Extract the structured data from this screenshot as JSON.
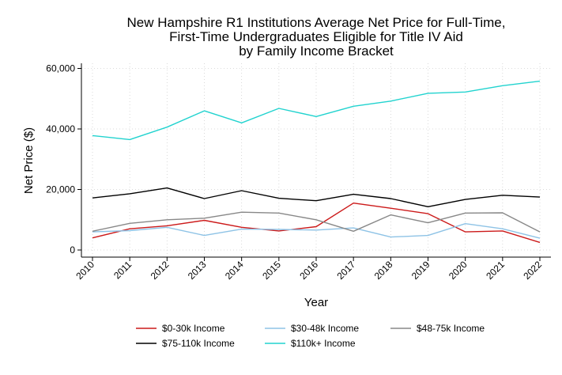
{
  "chart_data": {
    "type": "line",
    "title": [
      "New Hampshire R1 Institutions Average Net Price for Full-Time,",
      "First-Time Undergraduates Eligible for Title IV Aid",
      "by Family Income Bracket"
    ],
    "xlabel": "Year",
    "ylabel": "Net Price ($)",
    "x": [
      2010,
      2011,
      2012,
      2013,
      2014,
      2015,
      2016,
      2017,
      2018,
      2019,
      2020,
      2021,
      2022
    ],
    "ylim": [
      0,
      60000
    ],
    "yticks": [
      0,
      20000,
      40000,
      60000
    ],
    "ytick_labels": [
      "0",
      "20,000",
      "40,000",
      "60,000"
    ],
    "grid": true,
    "legend_position": "bottom",
    "series": [
      {
        "name": "$0-30k Income",
        "color": "#cc1a1a",
        "values": [
          4000,
          7000,
          8000,
          9800,
          7500,
          6300,
          7700,
          15500,
          13800,
          12000,
          6000,
          6300,
          2500
        ]
      },
      {
        "name": "$30-48k Income",
        "color": "#8ec3e6",
        "values": [
          6000,
          6400,
          7500,
          4800,
          6900,
          6800,
          6600,
          7300,
          4300,
          4800,
          8700,
          7000,
          3900
        ]
      },
      {
        "name": "$48-75k Income",
        "color": "#888888",
        "values": [
          6200,
          8800,
          10000,
          10500,
          12500,
          12200,
          10000,
          6200,
          11600,
          9000,
          12200,
          12300,
          6000
        ]
      },
      {
        "name": "$75-110k Income",
        "color": "#000000",
        "values": [
          17200,
          18600,
          20500,
          17000,
          19600,
          17100,
          16300,
          18400,
          17000,
          14300,
          16700,
          18100,
          17500
        ]
      },
      {
        "name": "$110k+ Income",
        "color": "#22d3cf",
        "values": [
          37800,
          36500,
          40600,
          46000,
          42000,
          46800,
          44100,
          47500,
          49200,
          51800,
          52200,
          54300,
          55800
        ]
      }
    ]
  }
}
